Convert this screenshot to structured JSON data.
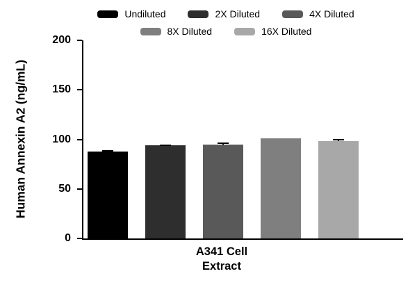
{
  "chart_data": {
    "type": "bar",
    "title": "",
    "ylabel": "Human Annexin A2 (ng/mL)",
    "xlabel": "",
    "categories": [
      "A341 Cell Extract"
    ],
    "category_display": "A341 Cell\nExtract",
    "ylim": [
      0,
      200
    ],
    "yticks": [
      0,
      50,
      100,
      150,
      200
    ],
    "grid": false,
    "legend_position": "top",
    "legend_rows": [
      [
        0,
        1,
        2
      ],
      [
        3,
        4
      ]
    ],
    "series": [
      {
        "name": "Undiluted",
        "value": 88,
        "error": 1,
        "color": "#000000"
      },
      {
        "name": "2X Diluted",
        "value": 94,
        "error": 1,
        "color": "#2e2e2e"
      },
      {
        "name": "4X Diluted",
        "value": 95,
        "error": 2,
        "color": "#595959"
      },
      {
        "name": "8X Diluted",
        "value": 101,
        "error": 0,
        "color": "#7f7f7f"
      },
      {
        "name": "16X Diluted",
        "value": 98,
        "error": 2.5,
        "color": "#a8a8a8"
      }
    ]
  }
}
